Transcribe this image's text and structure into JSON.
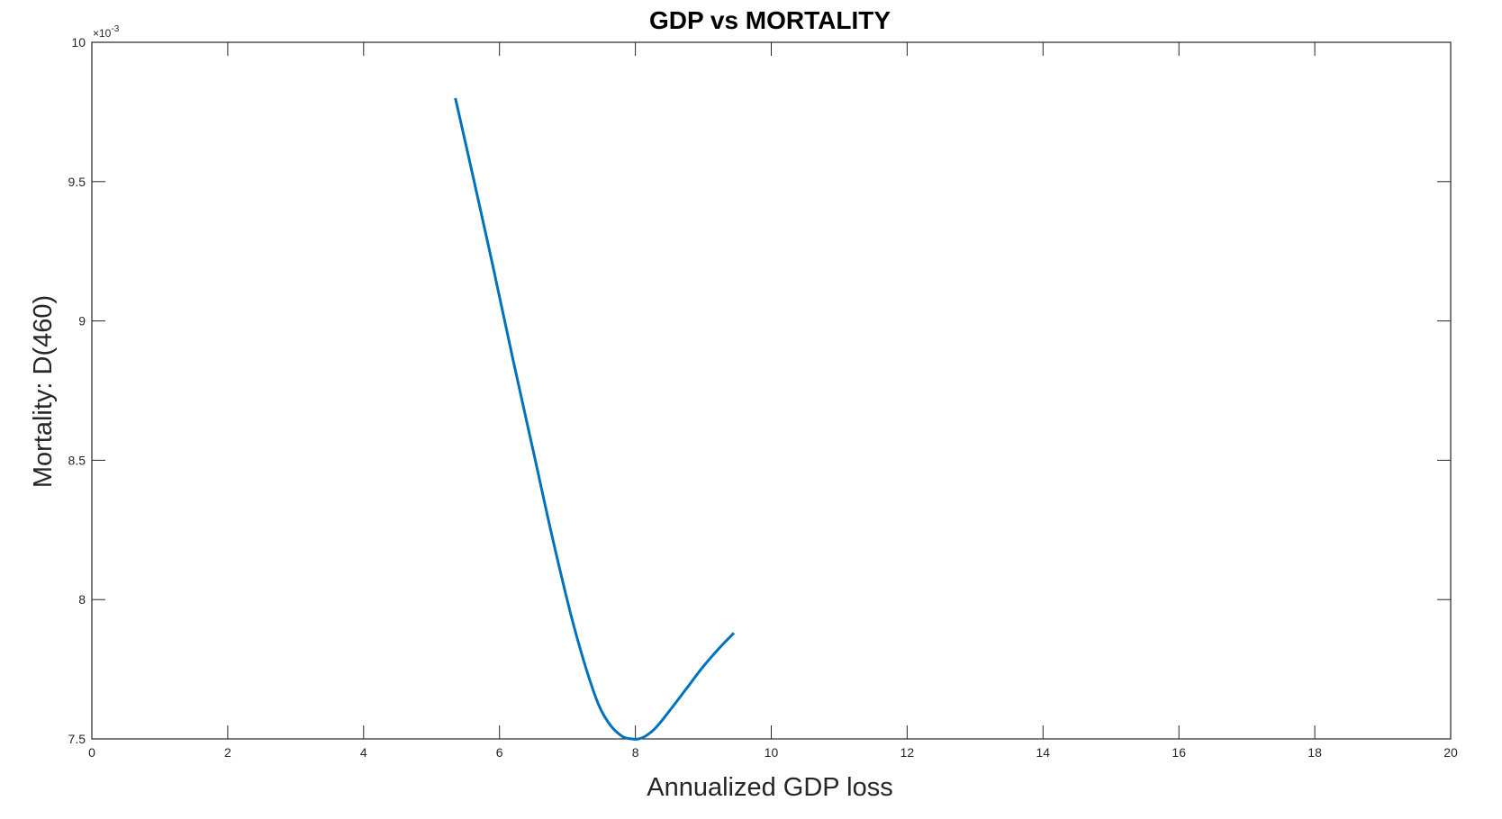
{
  "chart_data": {
    "type": "line",
    "title": "GDP vs MORTALITY",
    "xlabel": "Annualized GDP loss",
    "ylabel": "Mortality: D(460)",
    "xlim": [
      0,
      20
    ],
    "ylim": [
      7.5,
      10
    ],
    "y_exponent_label": "×10",
    "y_exponent_power": "-3",
    "y_scale_factor": 0.001,
    "xticks": [
      0,
      2,
      4,
      6,
      8,
      10,
      12,
      14,
      16,
      18,
      20
    ],
    "xtick_labels": [
      "0",
      "2",
      "4",
      "6",
      "8",
      "10",
      "12",
      "14",
      "16",
      "18",
      "20"
    ],
    "yticks": [
      7.5,
      8,
      8.5,
      9,
      9.5,
      10
    ],
    "ytick_labels": [
      "7.5",
      "8",
      "8.5",
      "9",
      "9.5",
      "10"
    ],
    "grid": false,
    "box": true,
    "series": [
      {
        "color": "#0072BD",
        "x": [
          5.35,
          5.6,
          5.9,
          6.2,
          6.5,
          6.8,
          7.1,
          7.4,
          7.6,
          7.8,
          7.95,
          8.05,
          8.15,
          8.3,
          8.5,
          8.75,
          9.0,
          9.25,
          9.45
        ],
        "y": [
          9.8,
          9.53,
          9.2,
          8.86,
          8.53,
          8.2,
          7.9,
          7.66,
          7.56,
          7.51,
          7.5,
          7.5,
          7.51,
          7.54,
          7.6,
          7.68,
          7.76,
          7.83,
          7.88
        ]
      }
    ]
  }
}
